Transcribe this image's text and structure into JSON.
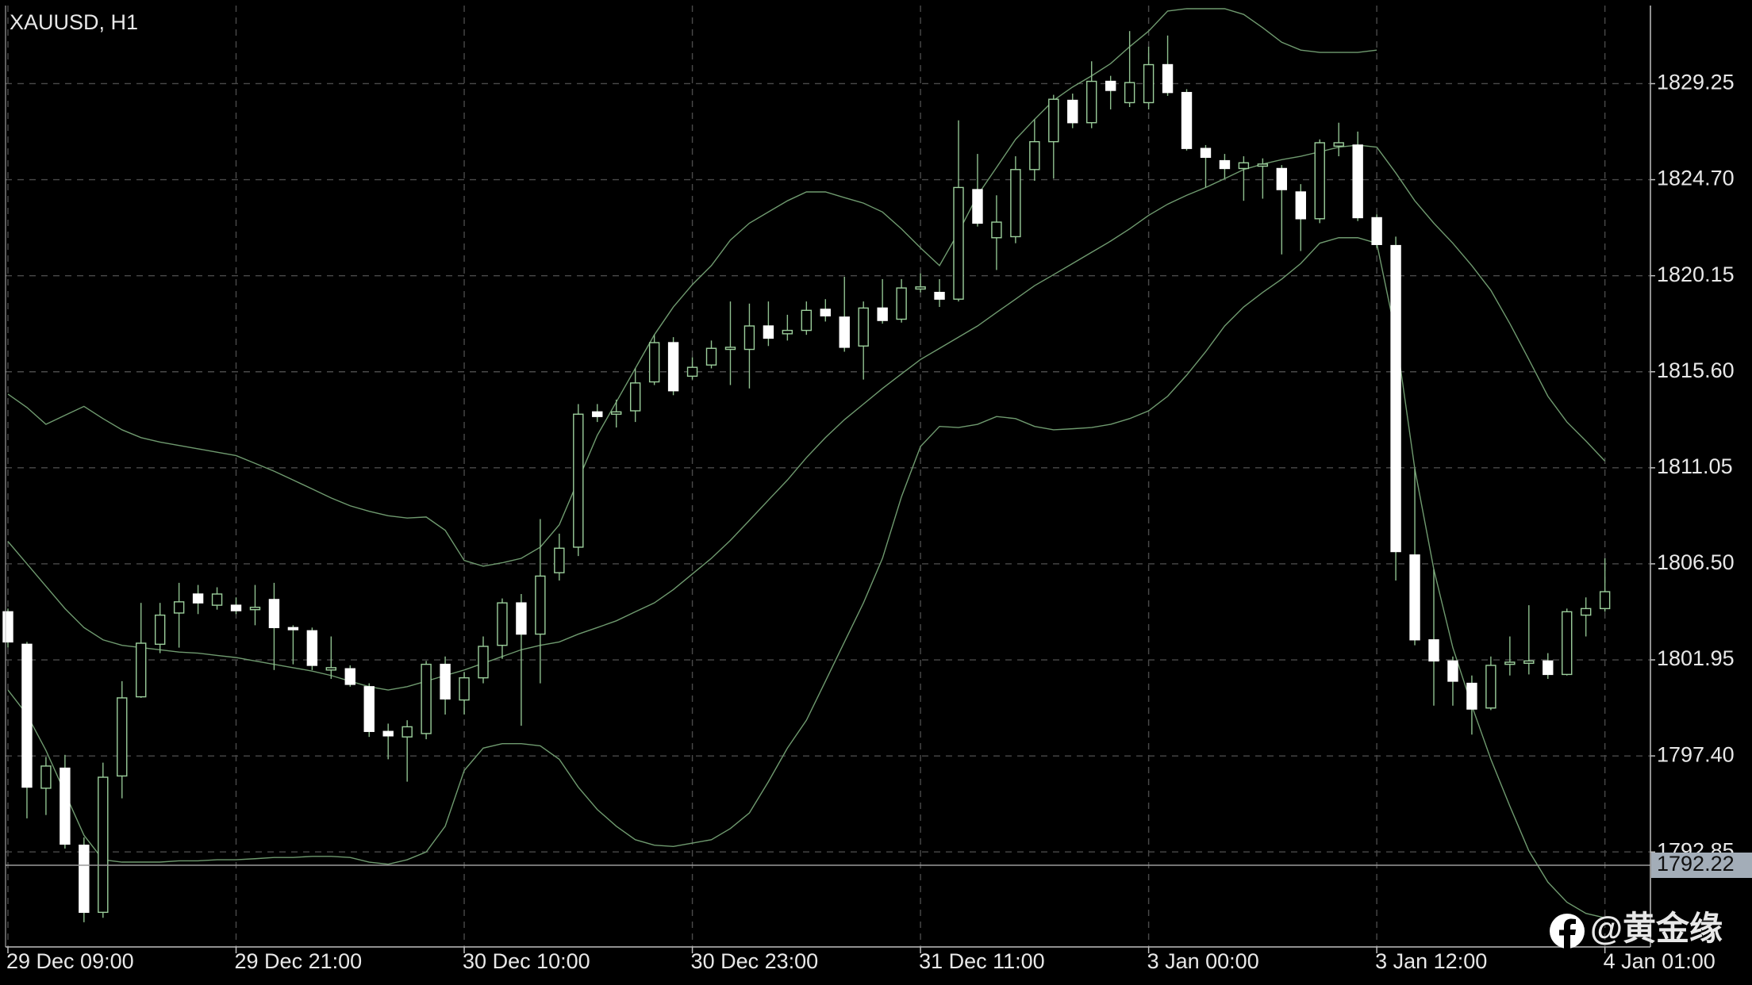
{
  "chart_data": {
    "type": "candlestick",
    "title": "XAUUSD, H1",
    "watermark": "@黄金缘",
    "categories": [
      "29 Dec 09:00",
      null,
      null,
      null,
      null,
      null,
      null,
      null,
      null,
      null,
      null,
      null,
      "29 Dec 21:00",
      null,
      null,
      null,
      null,
      null,
      null,
      null,
      null,
      null,
      null,
      null,
      "30 Dec 10:00",
      null,
      null,
      null,
      null,
      null,
      null,
      null,
      null,
      null,
      null,
      null,
      "30 Dec 23:00",
      null,
      null,
      null,
      null,
      null,
      null,
      null,
      null,
      null,
      null,
      null,
      "31 Dec 11:00",
      null,
      null,
      null,
      null,
      null,
      null,
      null,
      null,
      null,
      null,
      null,
      "3 Jan 00:00",
      null,
      null,
      null,
      null,
      null,
      null,
      null,
      null,
      null,
      null,
      null,
      "3 Jan 12:00",
      null,
      null,
      null,
      null,
      null,
      null,
      null,
      null,
      null,
      null,
      null,
      "4 Jan 01:00"
    ],
    "open": [
      1804.23,
      1802.69,
      1795.87,
      1796.82,
      1793.17,
      1789.99,
      1796.45,
      1800.2,
      1802.69,
      1804.17,
      1805.07,
      1804.54,
      1804.54,
      1804.33,
      1804.81,
      1803.48,
      1803.33,
      1801.47,
      1801.53,
      1800.68,
      1798.56,
      1798.3,
      1798.46,
      1801.74,
      1800.05,
      1801.1,
      1802.64,
      1804.65,
      1803.17,
      1806.08,
      1807.29,
      1813.7,
      1813.59,
      1813.75,
      1815.12,
      1816.98,
      1815.39,
      1815.92,
      1816.66,
      1816.66,
      1817.77,
      1817.4,
      1817.56,
      1818.56,
      1818.19,
      1816.82,
      1818.62,
      1818.09,
      1819.52,
      1819.36,
      1819.04,
      1824.23,
      1821.95,
      1822.0,
      1825.18,
      1826.5,
      1828.46,
      1827.4,
      1829.36,
      1828.35,
      1828.35,
      1830.15,
      1828.83,
      1826.18,
      1825.6,
      1825.23,
      1825.34,
      1825.23,
      1824.12,
      1822.85,
      1826.29,
      1826.34,
      1822.9,
      1821.58,
      1806.92,
      1802.9,
      1801.9,
      1800.84,
      1799.67,
      1801.74,
      1801.79,
      1801.9,
      1801.26,
      1804.07,
      1804.38
    ],
    "high": [
      1804.38,
      1802.8,
      1797.35,
      1797.45,
      1793.54,
      1797.08,
      1800.94,
      1804.65,
      1804.65,
      1805.6,
      1805.5,
      1805.39,
      1804.91,
      1805.5,
      1805.6,
      1803.59,
      1803.48,
      1803.06,
      1801.69,
      1800.84,
      1798.93,
      1799.09,
      1801.9,
      1802.11,
      1801.37,
      1803.06,
      1804.86,
      1805.07,
      1808.62,
      1807.93,
      1814.07,
      1814.07,
      1814.28,
      1815.76,
      1817.35,
      1817.24,
      1816.29,
      1817.08,
      1818.93,
      1818.83,
      1818.93,
      1818.3,
      1818.93,
      1819.04,
      1820.1,
      1818.93,
      1819.99,
      1819.99,
      1820.26,
      1819.99,
      1827.51,
      1825.92,
      1823.96,
      1825.81,
      1827.56,
      1828.72,
      1828.78,
      1830.31,
      1829.62,
      1831.74,
      1831.0,
      1831.53,
      1828.99,
      1826.34,
      1825.92,
      1825.81,
      1825.71,
      1825.39,
      1824.49,
      1826.61,
      1827.4,
      1826.98,
      1823.06,
      1822.0,
      1811.0,
      1806.24,
      1802.11,
      1801.21,
      1802.11,
      1803.06,
      1804.54,
      1802.27,
      1804.38,
      1804.91,
      1806.76
    ],
    "low": [
      1802.53,
      1794.44,
      1794.6,
      1793.01,
      1789.52,
      1789.73,
      1795.39,
      1800.15,
      1802.27,
      1802.53,
      1804.12,
      1804.33,
      1804.12,
      1803.59,
      1801.47,
      1801.74,
      1801.47,
      1801.05,
      1800.68,
      1798.3,
      1797.24,
      1796.18,
      1798.19,
      1799.36,
      1799.36,
      1800.84,
      1802.0,
      1798.83,
      1800.84,
      1805.71,
      1806.87,
      1813.22,
      1812.96,
      1813.22,
      1814.97,
      1814.49,
      1815.23,
      1815.76,
      1814.97,
      1814.81,
      1816.82,
      1817.08,
      1817.35,
      1817.98,
      1816.55,
      1815.23,
      1817.88,
      1817.93,
      1819.36,
      1818.67,
      1818.93,
      1822.48,
      1820.42,
      1821.69,
      1824.65,
      1824.75,
      1827.14,
      1827.14,
      1828.03,
      1828.14,
      1828.03,
      1828.67,
      1826.08,
      1824.33,
      1824.75,
      1823.7,
      1823.8,
      1821.16,
      1821.32,
      1822.64,
      1825.81,
      1822.74,
      1821.47,
      1805.71,
      1802.64,
      1799.78,
      1799.78,
      1798.41,
      1799.57,
      1801.21,
      1801.26,
      1801.05,
      1801.21,
      1803.06,
      1804.23
    ],
    "close": [
      1802.8,
      1795.92,
      1796.92,
      1793.22,
      1789.99,
      1796.39,
      1800.15,
      1802.74,
      1804.07,
      1804.7,
      1804.65,
      1805.07,
      1804.28,
      1804.44,
      1803.48,
      1803.38,
      1801.69,
      1801.58,
      1800.79,
      1798.56,
      1798.35,
      1798.78,
      1801.74,
      1800.1,
      1801.1,
      1802.59,
      1804.65,
      1803.17,
      1805.92,
      1807.24,
      1813.59,
      1813.48,
      1813.7,
      1815.07,
      1816.98,
      1814.7,
      1815.81,
      1816.71,
      1816.76,
      1817.77,
      1817.19,
      1817.56,
      1818.51,
      1818.25,
      1816.76,
      1818.62,
      1818.03,
      1819.57,
      1819.62,
      1819.04,
      1824.33,
      1822.64,
      1822.69,
      1825.18,
      1826.5,
      1828.51,
      1827.4,
      1829.36,
      1828.93,
      1829.3,
      1830.15,
      1828.83,
      1826.18,
      1825.76,
      1825.23,
      1825.5,
      1825.44,
      1824.23,
      1822.85,
      1826.45,
      1826.45,
      1822.9,
      1821.63,
      1807.08,
      1802.9,
      1801.9,
      1800.94,
      1799.62,
      1801.69,
      1801.84,
      1801.9,
      1801.26,
      1804.23,
      1804.38,
      1805.18
    ],
    "bull_color": "#9ccf9c",
    "bear_color": "#ffffff",
    "wick_color": "#8fc08f",
    "series": [
      {
        "color": "#6f9a6f",
        "values": [
          1814.54,
          1813.91,
          1813.11,
          1813.54,
          1813.96,
          1813.38,
          1812.85,
          1812.48,
          1812.27,
          1812.11,
          1811.95,
          1811.79,
          1811.63,
          1811.26,
          1810.89,
          1810.47,
          1810.05,
          1809.62,
          1809.25,
          1808.99,
          1808.78,
          1808.67,
          1808.72,
          1808.09,
          1806.66,
          1806.39,
          1806.55,
          1806.76,
          1807.29,
          1808.35,
          1810.47,
          1812.59,
          1814.17,
          1815.76,
          1817.35,
          1818.67,
          1819.73,
          1820.63,
          1821.84,
          1822.64,
          1823.17,
          1823.7,
          1824.12,
          1824.12,
          1823.85,
          1823.59,
          1823.17,
          1822.37,
          1821.47,
          1820.63,
          1822.21,
          1823.96,
          1825.28,
          1826.61,
          1827.56,
          1828.46,
          1829.09,
          1829.62,
          1830.2,
          1831.0,
          1831.74,
          1832.69,
          1832.8,
          1832.8,
          1832.8,
          1832.53,
          1831.9,
          1831.21,
          1830.84,
          1830.73,
          1830.73,
          1830.73,
          1830.84,
          null,
          null,
          null,
          null,
          null,
          null,
          null,
          null,
          null,
          null,
          null,
          null
        ]
      },
      {
        "color": "#6f9a6f",
        "values": [
          1807.56,
          1806.5,
          1805.44,
          1804.38,
          1803.48,
          1802.9,
          1802.64,
          1802.53,
          1802.43,
          1802.32,
          1802.27,
          1802.16,
          1802.06,
          1801.9,
          1801.74,
          1801.58,
          1801.42,
          1801.21,
          1800.94,
          1800.68,
          1800.52,
          1800.68,
          1800.94,
          1801.21,
          1801.47,
          1801.79,
          1802.11,
          1802.43,
          1802.64,
          1802.8,
          1803.17,
          1803.48,
          1803.8,
          1804.23,
          1804.65,
          1805.28,
          1806.02,
          1806.76,
          1807.61,
          1808.56,
          1809.52,
          1810.47,
          1811.53,
          1812.48,
          1813.33,
          1814.07,
          1814.81,
          1815.5,
          1816.18,
          1816.71,
          1817.24,
          1817.77,
          1818.41,
          1819.04,
          1819.68,
          1820.2,
          1820.73,
          1821.26,
          1821.79,
          1822.37,
          1823.01,
          1823.54,
          1823.96,
          1824.33,
          1824.75,
          1825.18,
          1825.44,
          1825.65,
          1825.81,
          1826.02,
          1826.24,
          1826.34,
          1826.24,
          1825.02,
          1823.7,
          1822.64,
          1821.69,
          1820.63,
          1819.46,
          1817.88,
          1816.18,
          1814.44,
          1813.22,
          1812.32,
          1811.37
        ]
      },
      {
        "color": "#6f9a6f",
        "values": [
          1800.52,
          1799.36,
          1797.66,
          1795.65,
          1793.64,
          1792.48,
          1792.37,
          1792.37,
          1792.37,
          1792.43,
          1792.43,
          1792.48,
          1792.48,
          1792.53,
          1792.59,
          1792.59,
          1792.64,
          1792.64,
          1792.59,
          1792.37,
          1792.27,
          1792.48,
          1792.85,
          1794.07,
          1796.71,
          1797.77,
          1797.98,
          1797.98,
          1797.88,
          1797.24,
          1795.92,
          1794.86,
          1794.07,
          1793.43,
          1793.17,
          1793.11,
          1793.27,
          1793.43,
          1793.96,
          1794.7,
          1796.18,
          1797.77,
          1799.09,
          1800.94,
          1802.8,
          1804.65,
          1806.76,
          1809.68,
          1812.06,
          1813.01,
          1812.96,
          1813.11,
          1813.48,
          1813.38,
          1813.01,
          1812.85,
          1812.9,
          1812.96,
          1813.11,
          1813.38,
          1813.75,
          1814.44,
          1815.44,
          1816.55,
          1817.77,
          1818.67,
          1819.36,
          1819.99,
          1820.73,
          1821.69,
          1821.95,
          1821.95,
          1821.69,
          1817.35,
          1811.0,
          1806.24,
          1802.53,
          1799.78,
          1797.24,
          1795.02,
          1792.9,
          1791.42,
          1790.47,
          1789.94,
          1789.73
        ]
      }
    ],
    "price_line": 1792.22,
    "ylim": [
      1788.35,
      1832.95
    ],
    "yticks": [
      1792.85,
      {
        "value": 1797.4,
        "label": "1797.40"
      },
      1801.95,
      {
        "value": 1806.5,
        "label": "1806.50"
      },
      1811.05,
      {
        "value": 1815.6,
        "label": "1815.60"
      },
      1820.15,
      {
        "value": 1824.7,
        "label": "1824.70"
      },
      1829.25
    ],
    "grid": true
  }
}
